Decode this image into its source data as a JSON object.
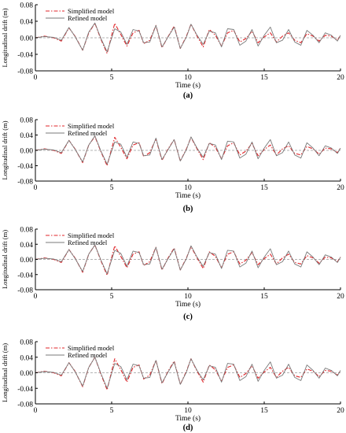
{
  "colors": {
    "simplified": "#e0262a",
    "refined": "#7a7a7a",
    "axis": "#000000",
    "zero_line": "#9a9a9a"
  },
  "chart_data": [
    {
      "panel_label": "(a)",
      "type": "line",
      "xlabel": "Time (s)",
      "ylabel": "Longitudinal drift (m)",
      "xlim": [
        0,
        20
      ],
      "ylim": [
        -0.08,
        0.08
      ],
      "x_ticks": [
        0,
        5,
        10,
        15,
        20
      ],
      "x_tick_labels": [
        "0",
        "5",
        "10",
        "15",
        "20"
      ],
      "y_ticks": [
        0.08,
        0.04,
        0.0,
        -0.04,
        -0.08
      ],
      "y_tick_labels": [
        "0.08",
        "0.04",
        "0.00",
        "-0.04",
        "-0.08"
      ],
      "legend": {
        "position": "top-left"
      },
      "series": [
        {
          "name": "Simplified model",
          "style": "dash-dot",
          "x": [
            0,
            0.6,
            1.2,
            1.7,
            2.2,
            2.6,
            3.1,
            3.5,
            3.9,
            4.3,
            4.7,
            5.2,
            5.6,
            6.0,
            6.4,
            6.8,
            7.1,
            7.5,
            7.9,
            8.3,
            8.7,
            9.1,
            9.5,
            9.9,
            10.2,
            10.6,
            11.0,
            11.4,
            11.8,
            12.2,
            12.6,
            13.0,
            13.4,
            13.8,
            14.2,
            14.6,
            15.0,
            15.4,
            15.8,
            16.2,
            16.6,
            17.0,
            17.4,
            17.8,
            18.2,
            18.6,
            19.0,
            19.4,
            19.8,
            20
          ],
          "y": [
            0,
            0.004,
            0,
            -0.008,
            0.024,
            0.004,
            -0.03,
            0.012,
            0.035,
            -0.004,
            -0.038,
            0.035,
            0.008,
            -0.02,
            0.012,
            0.018,
            -0.014,
            -0.006,
            0.03,
            -0.024,
            0.003,
            0.028,
            -0.026,
            0.004,
            0.033,
            0.004,
            -0.022,
            0.02,
            0.006,
            -0.02,
            0.012,
            0.018,
            -0.01,
            -0.002,
            0.016,
            -0.012,
            0.002,
            0.012,
            -0.01,
            0.004,
            0.012,
            -0.006,
            -0.012,
            0.01,
            0.004,
            -0.008,
            0.006,
            0.004,
            -0.006,
            0.006
          ]
        },
        {
          "name": "Refined model",
          "style": "solid",
          "x": [
            0,
            0.6,
            1.2,
            1.7,
            2.2,
            2.6,
            3.1,
            3.5,
            3.9,
            4.3,
            4.7,
            5.2,
            5.6,
            6.0,
            6.4,
            6.8,
            7.1,
            7.5,
            7.9,
            8.3,
            8.7,
            9.1,
            9.5,
            9.9,
            10.2,
            10.6,
            11.0,
            11.4,
            11.8,
            12.2,
            12.6,
            13.0,
            13.4,
            13.8,
            14.2,
            14.6,
            15.0,
            15.4,
            15.8,
            16.2,
            16.6,
            17.0,
            17.4,
            17.8,
            18.2,
            18.6,
            19.0,
            19.4,
            19.8,
            20
          ],
          "y": [
            0,
            0.003,
            0.001,
            -0.006,
            0.025,
            0.003,
            -0.03,
            0.014,
            0.036,
            -0.002,
            -0.034,
            0.022,
            0.014,
            -0.016,
            0.02,
            0.016,
            -0.012,
            -0.01,
            0.03,
            -0.022,
            0.002,
            0.026,
            -0.026,
            0.002,
            0.033,
            0.006,
            -0.016,
            0.016,
            0.012,
            -0.022,
            0.022,
            0.02,
            -0.018,
            -0.008,
            0.02,
            -0.02,
            0.006,
            0.026,
            -0.012,
            -0.006,
            0.02,
            -0.01,
            -0.018,
            0.018,
            0.006,
            -0.012,
            0.012,
            0.006,
            -0.008,
            0.006
          ]
        }
      ]
    },
    {
      "panel_label": "(b)",
      "type": "line",
      "xlabel": "Time (s)",
      "ylabel": "Longitudinal drift (m)",
      "xlim": [
        0,
        20
      ],
      "ylim": [
        -0.08,
        0.08
      ],
      "x_ticks": [
        0,
        5,
        10,
        15,
        20
      ],
      "x_tick_labels": [
        "0",
        "5",
        "10",
        "15",
        "20"
      ],
      "y_ticks": [
        0.08,
        0.04,
        0.0,
        -0.04,
        -0.08
      ],
      "y_tick_labels": [
        "0.08",
        "0.04",
        "0.00",
        "-0.04",
        "-0.08"
      ],
      "legend": {
        "position": "top-left"
      },
      "series": [
        {
          "name": "Simplified model",
          "style": "dash-dot",
          "x": [
            0,
            0.6,
            1.2,
            1.7,
            2.2,
            2.6,
            3.1,
            3.5,
            3.9,
            4.3,
            4.7,
            5.2,
            5.6,
            6.0,
            6.4,
            6.8,
            7.1,
            7.5,
            7.9,
            8.3,
            8.7,
            9.1,
            9.5,
            9.9,
            10.2,
            10.6,
            11.0,
            11.4,
            11.8,
            12.2,
            12.6,
            13.0,
            13.4,
            13.8,
            14.2,
            14.6,
            15.0,
            15.4,
            15.8,
            16.2,
            16.6,
            17.0,
            17.4,
            17.8,
            18.2,
            18.6,
            19.0,
            19.4,
            19.8,
            20
          ],
          "y": [
            0,
            0.004,
            0,
            -0.008,
            0.026,
            0.004,
            -0.032,
            0.014,
            0.036,
            -0.004,
            -0.04,
            0.034,
            0.008,
            -0.022,
            0.014,
            0.02,
            -0.016,
            -0.006,
            0.03,
            -0.026,
            0.004,
            0.028,
            -0.028,
            0.004,
            0.034,
            0.004,
            -0.024,
            0.02,
            0.008,
            -0.022,
            0.012,
            0.02,
            -0.012,
            -0.002,
            0.018,
            -0.014,
            0.002,
            0.014,
            -0.012,
            0.004,
            0.012,
            -0.008,
            -0.012,
            0.01,
            0.004,
            -0.01,
            0.006,
            0.004,
            -0.006,
            0.006
          ]
        },
        {
          "name": "Refined model",
          "style": "solid",
          "x": [
            0,
            0.6,
            1.2,
            1.7,
            2.2,
            2.6,
            3.1,
            3.5,
            3.9,
            4.3,
            4.7,
            5.2,
            5.6,
            6.0,
            6.4,
            6.8,
            7.1,
            7.5,
            7.9,
            8.3,
            8.7,
            9.1,
            9.5,
            9.9,
            10.2,
            10.6,
            11.0,
            11.4,
            11.8,
            12.2,
            12.6,
            13.0,
            13.4,
            13.8,
            14.2,
            14.6,
            15.0,
            15.4,
            15.8,
            16.2,
            16.6,
            17.0,
            17.4,
            17.8,
            18.2,
            18.6,
            19.0,
            19.4,
            19.8,
            20
          ],
          "y": [
            0,
            0.003,
            0.001,
            -0.006,
            0.026,
            0.003,
            -0.03,
            0.014,
            0.038,
            -0.002,
            -0.036,
            0.022,
            0.016,
            -0.018,
            0.022,
            0.018,
            -0.014,
            -0.012,
            0.032,
            -0.024,
            0.002,
            0.028,
            -0.028,
            0.002,
            0.035,
            0.006,
            -0.018,
            0.018,
            0.014,
            -0.024,
            0.024,
            0.022,
            -0.02,
            -0.01,
            0.022,
            -0.022,
            0.006,
            0.028,
            -0.014,
            -0.006,
            0.022,
            -0.012,
            -0.02,
            0.02,
            0.006,
            -0.014,
            0.012,
            0.006,
            -0.008,
            0.006
          ]
        }
      ]
    },
    {
      "panel_label": "(c)",
      "type": "line",
      "xlabel": "Time (s)",
      "ylabel": "Longitudinal drift (m)",
      "xlim": [
        0,
        20
      ],
      "ylim": [
        -0.08,
        0.08
      ],
      "x_ticks": [
        0,
        5,
        10,
        15,
        20
      ],
      "x_tick_labels": [
        "0",
        "5",
        "10",
        "15",
        "20"
      ],
      "y_ticks": [
        0.08,
        0.04,
        0.0,
        -0.04,
        -0.08
      ],
      "y_tick_labels": [
        "0.08",
        "0.04",
        "0.00",
        "-0.04",
        "-0.08"
      ],
      "legend": {
        "position": "top-left"
      },
      "series": [
        {
          "name": "Simplified model",
          "style": "dash-dot",
          "x": [
            0,
            0.6,
            1.2,
            1.7,
            2.2,
            2.6,
            3.1,
            3.5,
            3.9,
            4.3,
            4.7,
            5.2,
            5.6,
            6.0,
            6.4,
            6.8,
            7.1,
            7.5,
            7.9,
            8.3,
            8.7,
            9.1,
            9.5,
            9.9,
            10.2,
            10.6,
            11.0,
            11.4,
            11.8,
            12.2,
            12.6,
            13.0,
            13.4,
            13.8,
            14.2,
            14.6,
            15.0,
            15.4,
            15.8,
            16.2,
            16.6,
            17.0,
            17.4,
            17.8,
            18.2,
            18.6,
            19.0,
            19.4,
            19.8,
            20
          ],
          "y": [
            0,
            0.004,
            0,
            -0.008,
            0.026,
            0.004,
            -0.034,
            0.014,
            0.038,
            -0.004,
            -0.042,
            0.036,
            0.008,
            -0.022,
            0.014,
            0.02,
            -0.016,
            -0.006,
            0.032,
            -0.028,
            0.004,
            0.03,
            -0.028,
            0.004,
            0.034,
            0.004,
            -0.024,
            0.02,
            0.008,
            -0.022,
            0.014,
            0.02,
            -0.012,
            -0.002,
            0.018,
            -0.014,
            0.002,
            0.014,
            -0.012,
            0.004,
            0.014,
            -0.008,
            -0.012,
            0.01,
            0.004,
            -0.01,
            0.006,
            0.004,
            -0.006,
            0.006
          ]
        },
        {
          "name": "Refined model",
          "style": "solid",
          "x": [
            0,
            0.6,
            1.2,
            1.7,
            2.2,
            2.6,
            3.1,
            3.5,
            3.9,
            4.3,
            4.7,
            5.2,
            5.6,
            6.0,
            6.4,
            6.8,
            7.1,
            7.5,
            7.9,
            8.3,
            8.7,
            9.1,
            9.5,
            9.9,
            10.2,
            10.6,
            11.0,
            11.4,
            11.8,
            12.2,
            12.6,
            13.0,
            13.4,
            13.8,
            14.2,
            14.6,
            15.0,
            15.4,
            15.8,
            16.2,
            16.6,
            17.0,
            17.4,
            17.8,
            18.2,
            18.6,
            19.0,
            19.4,
            19.8,
            20
          ],
          "y": [
            0,
            0.003,
            0.001,
            -0.006,
            0.026,
            0.003,
            -0.032,
            0.014,
            0.038,
            -0.002,
            -0.038,
            0.024,
            0.016,
            -0.018,
            0.022,
            0.018,
            -0.014,
            -0.012,
            0.032,
            -0.026,
            0.002,
            0.028,
            -0.028,
            0.002,
            0.036,
            0.006,
            -0.018,
            0.018,
            0.014,
            -0.024,
            0.024,
            0.022,
            -0.02,
            -0.01,
            0.022,
            -0.022,
            0.006,
            0.028,
            -0.014,
            -0.006,
            0.022,
            -0.012,
            -0.02,
            0.02,
            0.006,
            -0.014,
            0.012,
            0.006,
            -0.008,
            0.006
          ]
        }
      ]
    },
    {
      "panel_label": "(d)",
      "type": "line",
      "xlabel": "Time (s)",
      "ylabel": "Longitudinal drift (m)",
      "xlim": [
        0,
        20
      ],
      "ylim": [
        -0.08,
        0.08
      ],
      "x_ticks": [
        0,
        5,
        10,
        15,
        20
      ],
      "x_tick_labels": [
        "0",
        "5",
        "10",
        "15",
        "20"
      ],
      "y_ticks": [
        0.08,
        0.04,
        0.0,
        -0.04,
        -0.08
      ],
      "y_tick_labels": [
        "0.08",
        "0.04",
        "0.00",
        "-0.04",
        "-0.08"
      ],
      "legend": {
        "position": "top-left"
      },
      "series": [
        {
          "name": "Simplified model",
          "style": "dash-dot",
          "x": [
            0,
            0.6,
            1.2,
            1.7,
            2.2,
            2.6,
            3.1,
            3.5,
            3.9,
            4.3,
            4.7,
            5.2,
            5.6,
            6.0,
            6.4,
            6.8,
            7.1,
            7.5,
            7.9,
            8.3,
            8.7,
            9.1,
            9.5,
            9.9,
            10.2,
            10.6,
            11.0,
            11.4,
            11.8,
            12.2,
            12.6,
            13.0,
            13.4,
            13.8,
            14.2,
            14.6,
            15.0,
            15.4,
            15.8,
            16.2,
            16.6,
            17.0,
            17.4,
            17.8,
            18.2,
            18.6,
            19.0,
            19.4,
            19.8,
            20
          ],
          "y": [
            0,
            0.004,
            0,
            -0.008,
            0.026,
            0.004,
            -0.036,
            0.014,
            0.04,
            -0.004,
            -0.044,
            0.036,
            0.008,
            -0.024,
            0.014,
            0.02,
            -0.016,
            -0.006,
            0.032,
            -0.028,
            0.004,
            0.03,
            -0.03,
            0.004,
            0.036,
            0.004,
            -0.024,
            0.02,
            0.008,
            -0.022,
            0.014,
            0.02,
            -0.012,
            -0.002,
            0.018,
            -0.014,
            0.002,
            0.014,
            -0.012,
            0.004,
            0.014,
            -0.008,
            -0.012,
            0.01,
            0.004,
            -0.01,
            0.006,
            0.004,
            -0.006,
            0.006
          ]
        },
        {
          "name": "Refined model",
          "style": "solid",
          "x": [
            0,
            0.6,
            1.2,
            1.7,
            2.2,
            2.6,
            3.1,
            3.5,
            3.9,
            4.3,
            4.7,
            5.2,
            5.6,
            6.0,
            6.4,
            6.8,
            7.1,
            7.5,
            7.9,
            8.3,
            8.7,
            9.1,
            9.5,
            9.9,
            10.2,
            10.6,
            11.0,
            11.4,
            11.8,
            12.2,
            12.6,
            13.0,
            13.4,
            13.8,
            14.2,
            14.6,
            15.0,
            15.4,
            15.8,
            16.2,
            16.6,
            17.0,
            17.4,
            17.8,
            18.2,
            18.6,
            19.0,
            19.4,
            19.8,
            20
          ],
          "y": [
            0,
            0.003,
            0.001,
            -0.006,
            0.026,
            0.003,
            -0.034,
            0.014,
            0.04,
            -0.002,
            -0.04,
            0.024,
            0.016,
            -0.018,
            0.022,
            0.018,
            -0.014,
            -0.012,
            0.032,
            -0.026,
            0.002,
            0.028,
            -0.03,
            0.002,
            0.036,
            0.006,
            -0.018,
            0.018,
            0.014,
            -0.024,
            0.024,
            0.022,
            -0.02,
            -0.01,
            0.022,
            -0.022,
            0.006,
            0.028,
            -0.014,
            -0.006,
            0.022,
            -0.012,
            -0.02,
            0.02,
            0.006,
            -0.014,
            0.012,
            0.006,
            -0.008,
            0.006
          ]
        }
      ]
    }
  ]
}
